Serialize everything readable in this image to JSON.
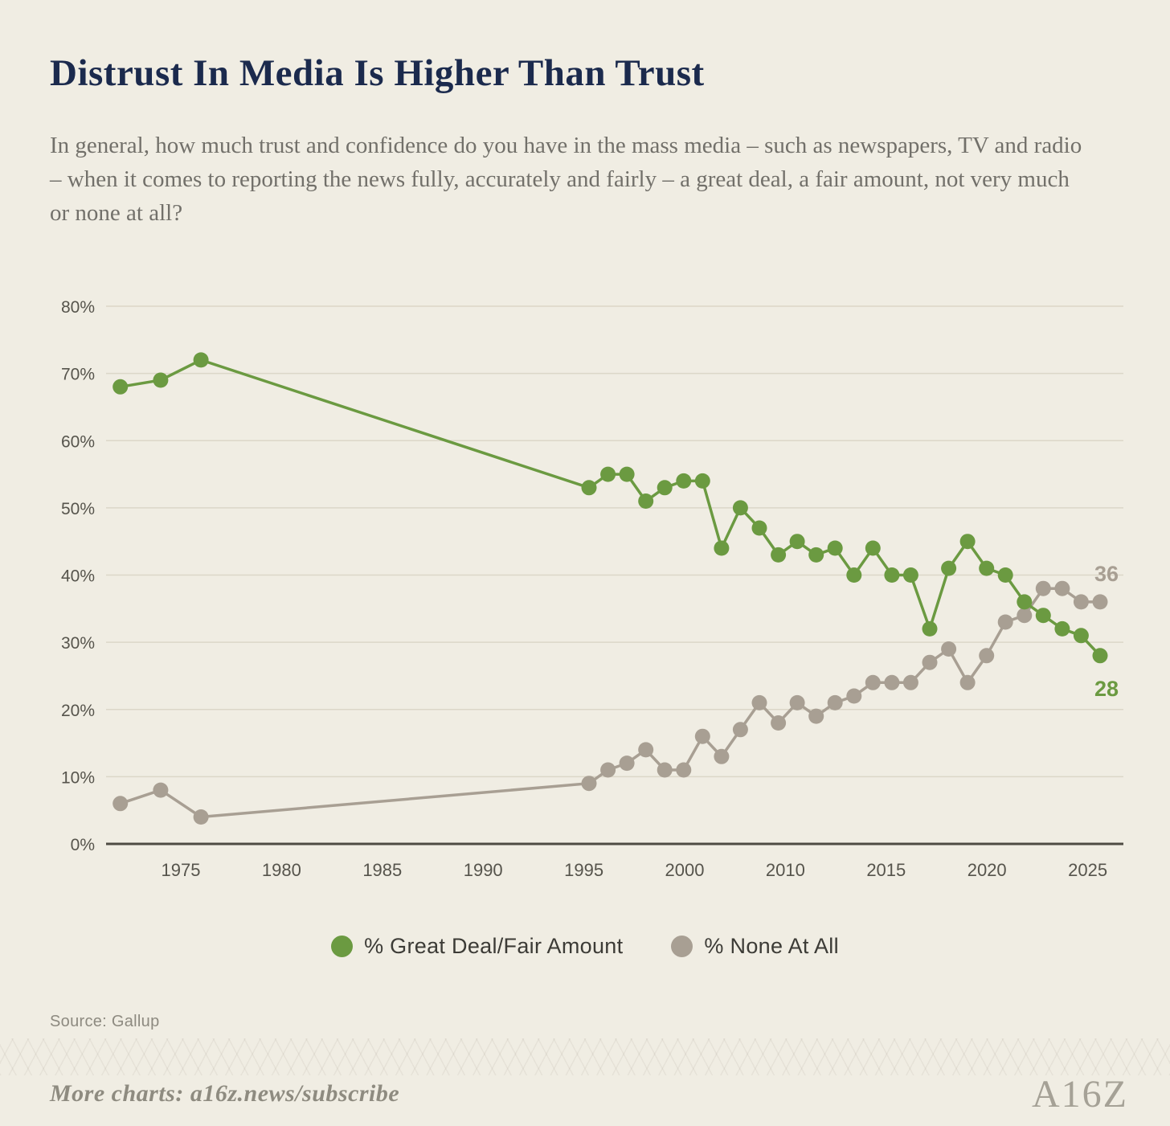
{
  "page": {
    "background": "#f0ede3"
  },
  "header": {
    "title": "Distrust In Media Is Higher Than Trust",
    "subtitle": "In general, how much trust and confidence do you have in the mass media – such as newspapers, TV and radio – when it comes to reporting the news fully, accurately and fairly – a great deal, a fair amount, not very much or none at all?"
  },
  "chart_data": {
    "type": "line",
    "title": "Distrust In Media Is Higher Than Trust",
    "ylim": [
      0,
      80
    ],
    "y_ticks": [
      0,
      10,
      20,
      30,
      40,
      50,
      60,
      70,
      80
    ],
    "y_tick_suffix": "%",
    "x_tick_labels": [
      "1975",
      "1980",
      "1985",
      "1990",
      "1995",
      "2000",
      "2010",
      "2015",
      "2020",
      "2025"
    ],
    "grid": "horizontal",
    "legend_position": "bottom",
    "years": [
      1972,
      1974,
      1976,
      1997,
      1998,
      1999,
      2000,
      2001,
      2002,
      2003,
      2004,
      2005,
      2007,
      2008,
      2009,
      2010,
      2011,
      2012,
      2013,
      2014,
      2015,
      2016,
      2017,
      2018,
      2019,
      2020,
      2021,
      2022,
      2023,
      2024,
      2025
    ],
    "series": [
      {
        "name": "% Great Deal/Fair Amount",
        "color": "#6b9a41",
        "end_label": "28",
        "values": [
          68,
          69,
          72,
          53,
          55,
          55,
          51,
          53,
          54,
          54,
          44,
          50,
          47,
          43,
          45,
          43,
          44,
          40,
          44,
          40,
          40,
          32,
          41,
          45,
          41,
          40,
          36,
          34,
          32,
          31,
          28
        ]
      },
      {
        "name": "% None At All",
        "color": "#a89f93",
        "end_label": "36",
        "values": [
          6,
          8,
          4,
          9,
          11,
          12,
          14,
          11,
          11,
          16,
          13,
          17,
          21,
          18,
          21,
          19,
          21,
          22,
          24,
          24,
          24,
          27,
          29,
          24,
          28,
          33,
          34,
          38,
          38,
          36,
          36
        ]
      }
    ]
  },
  "source": {
    "label": "Source: Gallup"
  },
  "footer": {
    "more_charts": "More charts: a16z.news/subscribe",
    "logo": "A16Z"
  }
}
